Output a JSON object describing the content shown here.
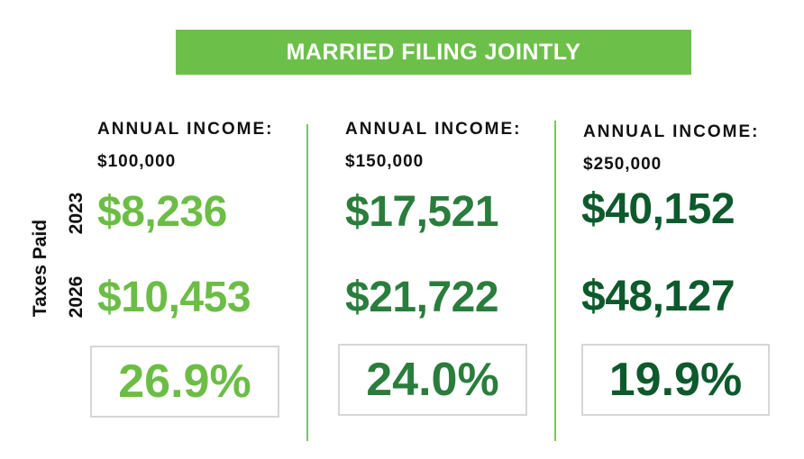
{
  "title": "MARRIED FILING JOINTLY",
  "row_labels": {
    "group": "Taxes Paid",
    "year1": "2023",
    "year2": "2026"
  },
  "colors": {
    "banner": "#6cc04a",
    "col1": "#6cbd45",
    "col2": "#2a7d3c",
    "col3": "#0d5a2c"
  },
  "columns": [
    {
      "label": "ANNUAL INCOME:",
      "income": "$100,000",
      "tax_2023": "$8,236",
      "tax_2026": "$10,453",
      "increase": "26.9%"
    },
    {
      "label": "ANNUAL INCOME:",
      "income": "$150,000",
      "tax_2023": "$17,521",
      "tax_2026": "$21,722",
      "increase": "24.0%"
    },
    {
      "label": "ANNUAL INCOME:",
      "income": "$250,000",
      "tax_2023": "$40,152",
      "tax_2026": "$48,127",
      "increase": "19.9%"
    }
  ]
}
